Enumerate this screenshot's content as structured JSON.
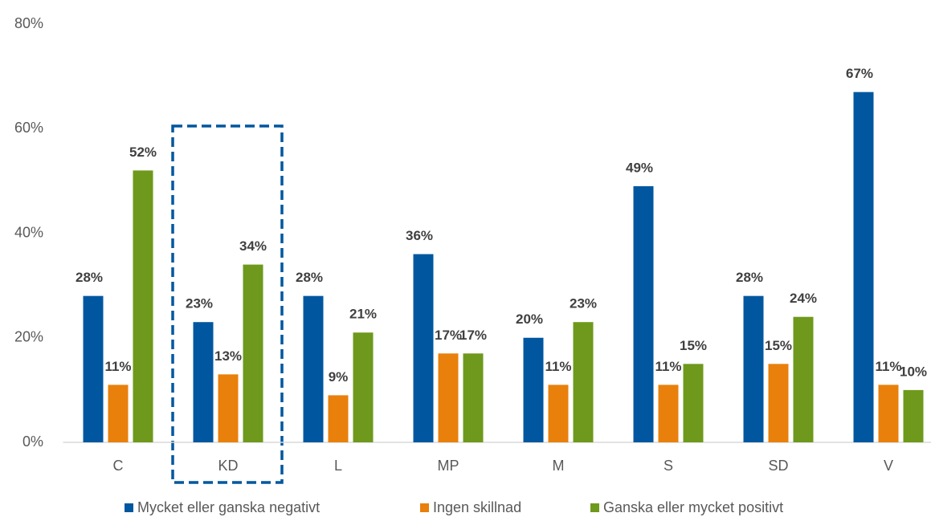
{
  "chart_data": {
    "type": "bar",
    "categories": [
      "C",
      "KD",
      "L",
      "MP",
      "M",
      "S",
      "SD",
      "V"
    ],
    "series": [
      {
        "name": "Mycket eller ganska negativt",
        "color": "#00579f",
        "values": [
          28,
          23,
          28,
          36,
          20,
          49,
          28,
          67
        ],
        "value_labels": [
          "28%",
          "23%",
          "28%",
          "36%",
          "20%",
          "49%",
          "28%",
          "67%"
        ]
      },
      {
        "name": "Ingen skillnad",
        "color": "#e8800b",
        "values": [
          11,
          13,
          9,
          17,
          11,
          11,
          15,
          11
        ],
        "value_labels": [
          "11%",
          "13%",
          "9%",
          "17%",
          "11%",
          "11%",
          "15%",
          "11%"
        ]
      },
      {
        "name": "Ganska eller mycket positivt",
        "color": "#6e991c",
        "values": [
          52,
          34,
          21,
          17,
          23,
          15,
          24,
          10
        ],
        "value_labels": [
          "52%",
          "34%",
          "21%",
          "17%",
          "23%",
          "15%",
          "24%",
          "10%"
        ]
      }
    ],
    "ylim": [
      0,
      80
    ],
    "yticks": [
      {
        "value": 0,
        "label": "0%"
      },
      {
        "value": 20,
        "label": "20%"
      },
      {
        "value": 40,
        "label": "40%"
      },
      {
        "value": 60,
        "label": "60%"
      },
      {
        "value": 80,
        "label": "80%"
      }
    ],
    "grid": false
  }
}
